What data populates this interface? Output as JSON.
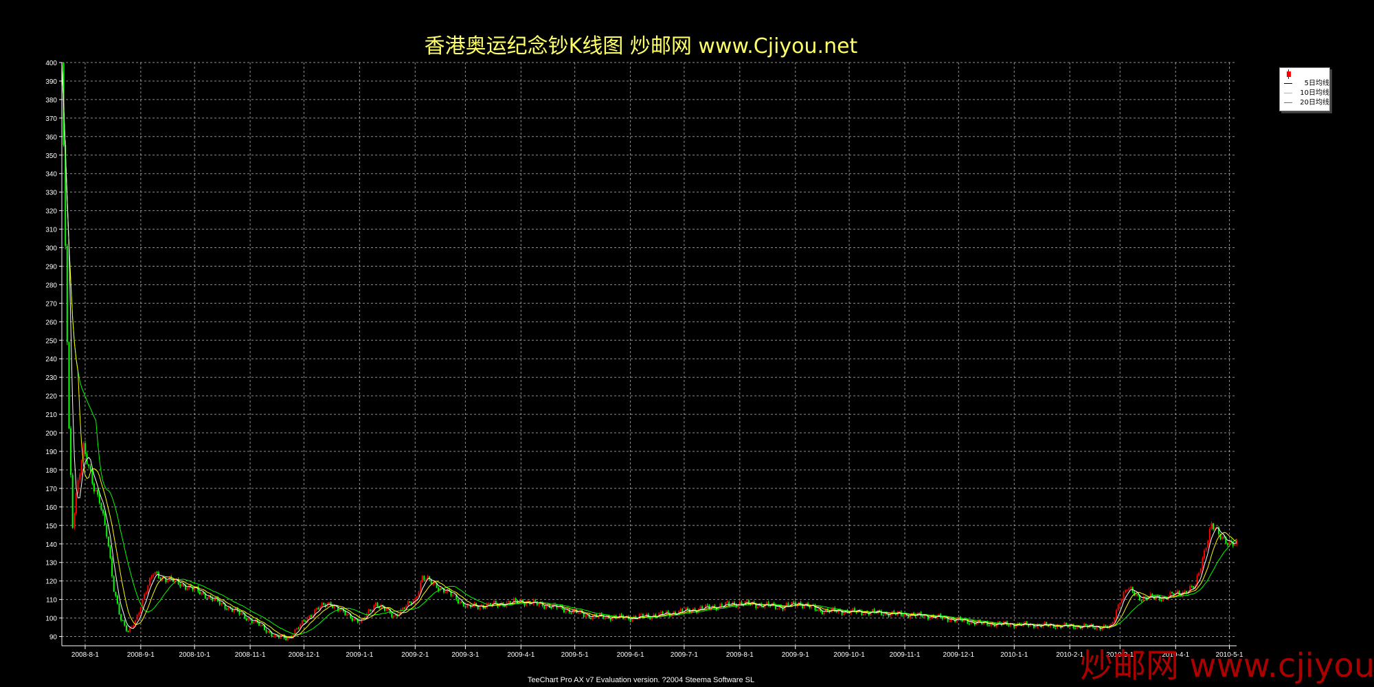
{
  "chart_data": {
    "type": "candlestick",
    "title": "香港奥运纪念钞K线图  炒邮网 www.Cjiyou.net",
    "footer": "TeeChart Pro AX v7 Evaluation version. ?2004 Steema Software SL",
    "watermark": "炒邮网 www.cjiyou.net",
    "ylim": [
      85,
      400
    ],
    "yticks": [
      90,
      100,
      110,
      120,
      130,
      140,
      150,
      160,
      170,
      180,
      190,
      200,
      210,
      220,
      230,
      240,
      250,
      260,
      270,
      280,
      290,
      300,
      310,
      320,
      330,
      340,
      350,
      360,
      370,
      380,
      390,
      400
    ],
    "xticks": [
      "2008-8-1",
      "2008-9-1",
      "2008-10-1",
      "2008-11-1",
      "2008-12-1",
      "2009-1-1",
      "2009-2-1",
      "2009-3-1",
      "2009-4-1",
      "2009-5-1",
      "2009-6-1",
      "2009-7-1",
      "2009-8-1",
      "2009-9-1",
      "2009-10-1",
      "2009-11-1",
      "2009-12-1",
      "2010-1-1",
      "2010-2-1",
      "2010-3-1",
      "2010-4-1",
      "2010-5-1"
    ],
    "xlim": [
      "2008-7-19",
      "2010-5-5"
    ],
    "grid": true,
    "legend": {
      "position": "top-right",
      "entries": [
        {
          "name": "5日均线",
          "color": "#ffffff"
        },
        {
          "name": "10日均线",
          "color": "#ffff00"
        },
        {
          "name": "20日均线",
          "color": "#00ff00"
        }
      ]
    },
    "colors": {
      "up": "#ff0000",
      "down": "#00ff00",
      "ma5": "#ffffff",
      "ma10": "#ffff00",
      "ma20": "#00ff00",
      "grid": "#c0c0c0"
    },
    "keypoints": [
      [
        "2008-7-19",
        400
      ],
      [
        "2008-7-21",
        300
      ],
      [
        "2008-7-23",
        200
      ],
      [
        "2008-7-25",
        150
      ],
      [
        "2008-7-28",
        175
      ],
      [
        "2008-7-31",
        192
      ],
      [
        "2008-8-3",
        180
      ],
      [
        "2008-8-6",
        170
      ],
      [
        "2008-8-9",
        165
      ],
      [
        "2008-8-13",
        145
      ],
      [
        "2008-8-17",
        115
      ],
      [
        "2008-8-21",
        100
      ],
      [
        "2008-8-25",
        92
      ],
      [
        "2008-8-29",
        98
      ],
      [
        "2008-9-3",
        113
      ],
      [
        "2008-9-8",
        124
      ],
      [
        "2008-9-13",
        122
      ],
      [
        "2008-9-19",
        120
      ],
      [
        "2008-9-27",
        117
      ],
      [
        "2008-10-6",
        113
      ],
      [
        "2008-10-15",
        108
      ],
      [
        "2008-10-25",
        103
      ],
      [
        "2008-11-5",
        97
      ],
      [
        "2008-11-15",
        90
      ],
      [
        "2008-11-22",
        89
      ],
      [
        "2008-12-1",
        98
      ],
      [
        "2008-12-8",
        105
      ],
      [
        "2008-12-16",
        108
      ],
      [
        "2008-12-24",
        102
      ],
      [
        "2009-1-2",
        98
      ],
      [
        "2009-1-10",
        108
      ],
      [
        "2009-1-20",
        101
      ],
      [
        "2009-2-1",
        110
      ],
      [
        "2009-2-5",
        122
      ],
      [
        "2009-2-12",
        118
      ],
      [
        "2009-2-22",
        112
      ],
      [
        "2009-3-2",
        106
      ],
      [
        "2009-3-15",
        107
      ],
      [
        "2009-4-1",
        109
      ],
      [
        "2009-4-20",
        106
      ],
      [
        "2009-5-10",
        101
      ],
      [
        "2009-6-1",
        100
      ],
      [
        "2009-6-20",
        102
      ],
      [
        "2009-7-10",
        105
      ],
      [
        "2009-8-1",
        108
      ],
      [
        "2009-8-25",
        106
      ],
      [
        "2009-9-3",
        108
      ],
      [
        "2009-9-15",
        104
      ],
      [
        "2009-10-15",
        103
      ],
      [
        "2009-11-15",
        101
      ],
      [
        "2009-12-15",
        97
      ],
      [
        "2010-1-20",
        96
      ],
      [
        "2010-2-24",
        95
      ],
      [
        "2010-3-1",
        110
      ],
      [
        "2010-3-5",
        116
      ],
      [
        "2010-3-12",
        111
      ],
      [
        "2010-3-25",
        111
      ],
      [
        "2010-4-5",
        114
      ],
      [
        "2010-4-12",
        117
      ],
      [
        "2010-4-18",
        140
      ],
      [
        "2010-4-21",
        150
      ],
      [
        "2010-4-25",
        145
      ],
      [
        "2010-5-1",
        141
      ],
      [
        "2010-5-5",
        139
      ]
    ]
  }
}
